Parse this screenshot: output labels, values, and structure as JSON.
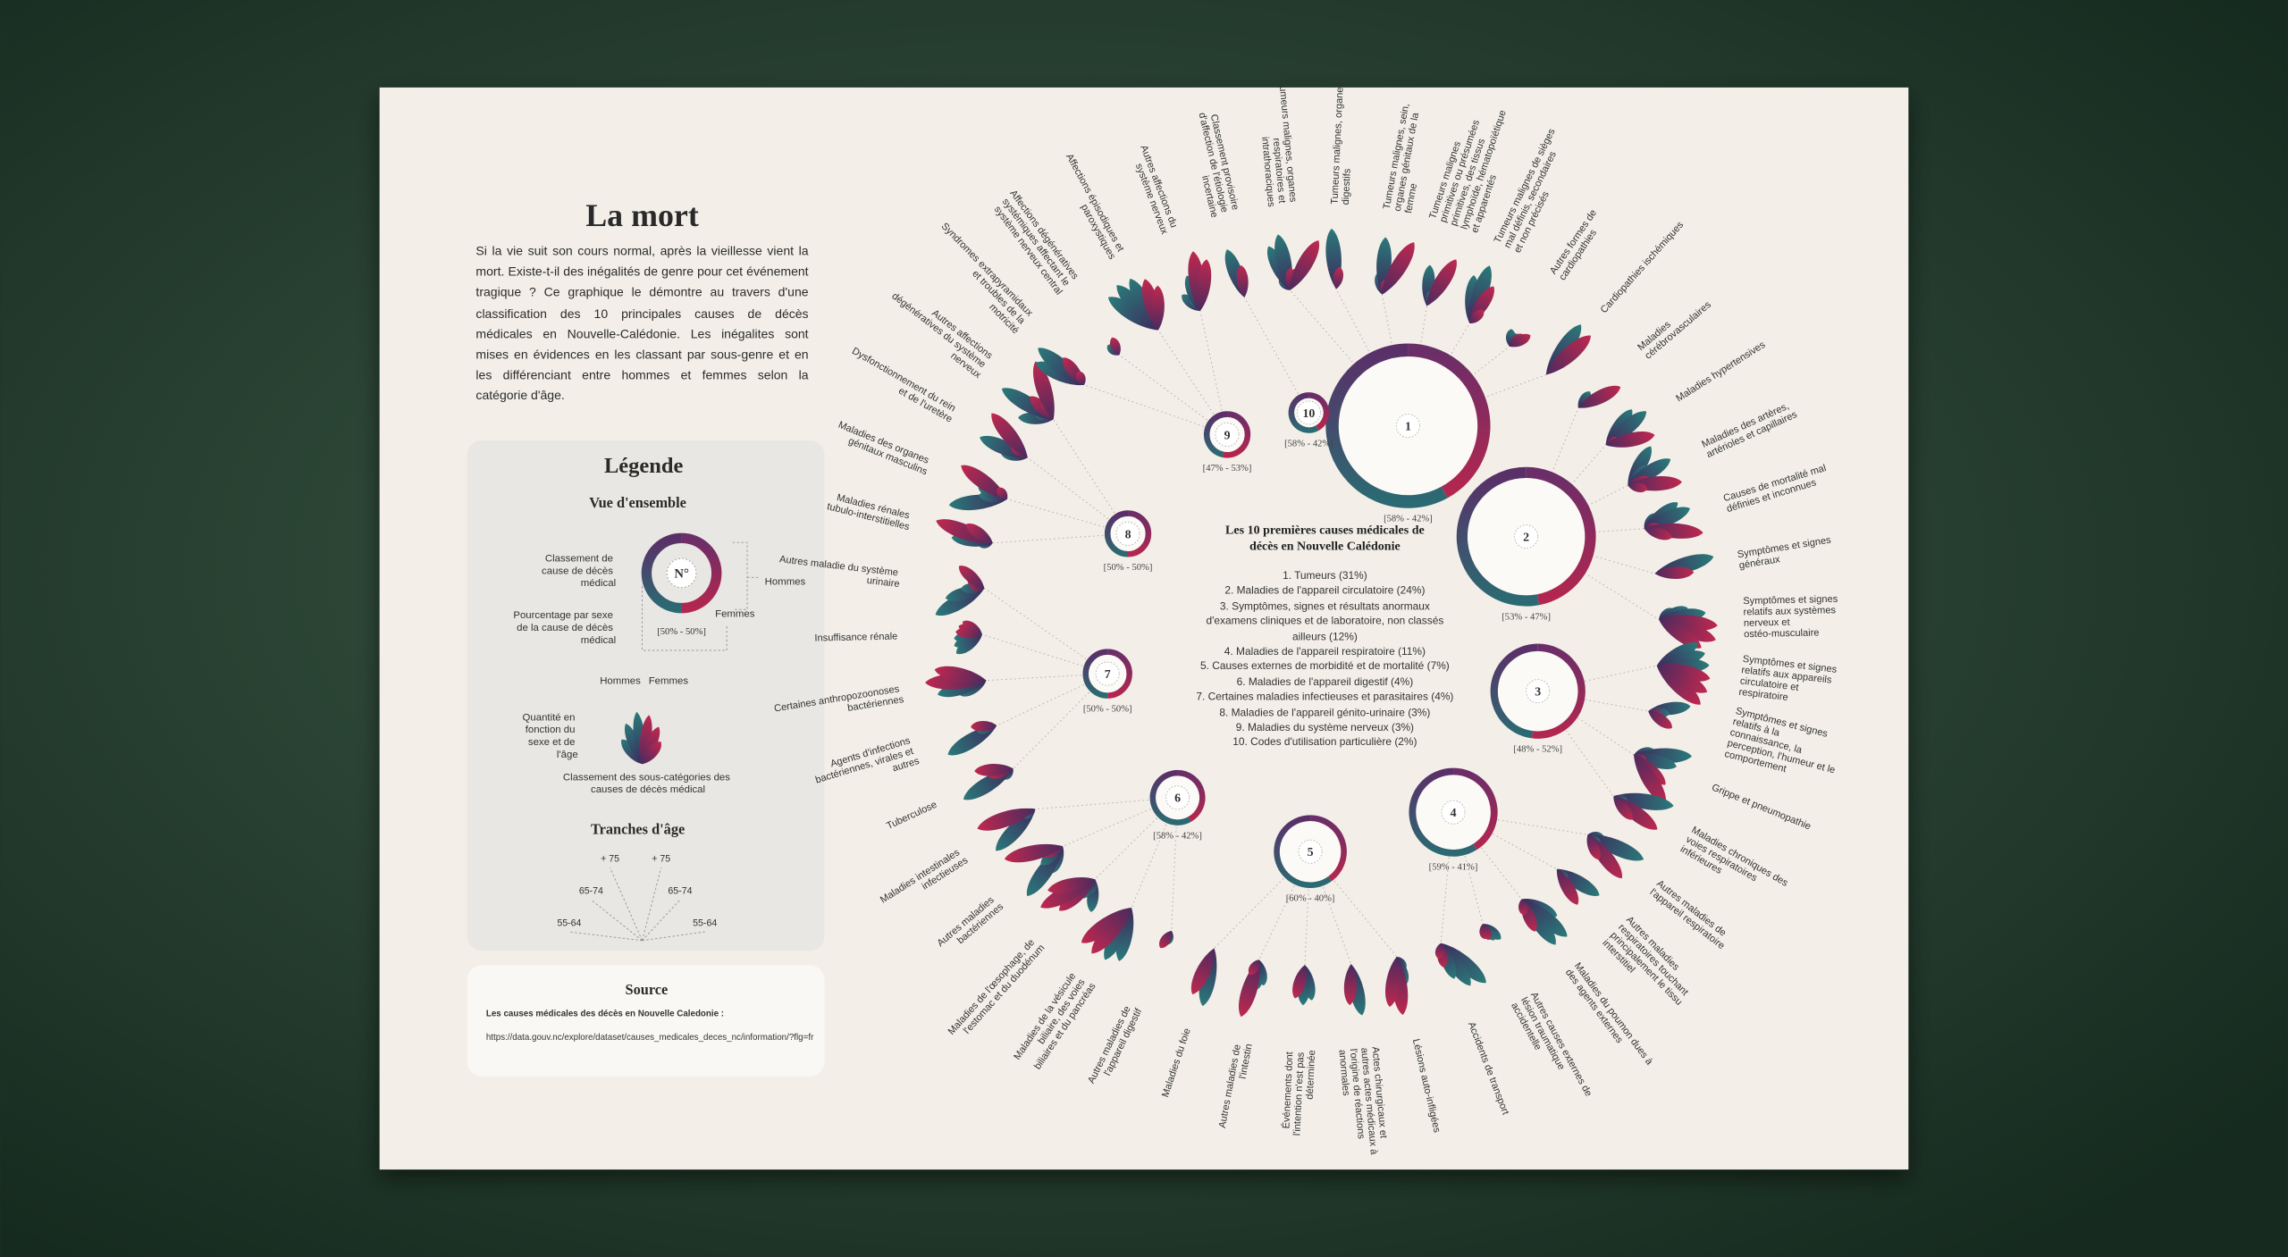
{
  "header": {
    "title": "La mort",
    "intro": "Si la vie suit son cours normal, après la vieillesse vient la mort. Existe-t-il des inégalités de genre pour cet événement tragique ? Ce graphique le démontre au travers d'une classification des 10 principales causes de décès médicales en Nouvelle-Calédonie. Les inégalites sont mises en évidences en les classant par sous-genre et en les différenciant entre hommes et femmes selon la catégorie d'âge."
  },
  "legend": {
    "title": "Légende",
    "overview": "Vue d'ensemble",
    "rank_note": "Classement de cause de décès médical",
    "rank_symbol": "N°",
    "men": "Hommes",
    "women": "Femmes",
    "share_note": "Pourcentage par sexe de la cause de décès médical",
    "share_example": "[50% - 50%]",
    "petal_men": "Hommes",
    "petal_women": "Femmes",
    "quantity_note": "Quantité en fonction du sexe et de l'âge",
    "subcat_note": "Classement des sous-catégories des causes de décès médical",
    "ages_title": "Tranches d'âge",
    "ages": [
      "+ 75",
      "+ 75",
      "65-74",
      "65-74",
      "55-64",
      "55-64"
    ]
  },
  "source": {
    "title": "Source",
    "label": "Les causes médicales des décès en Nouvelle Caledonie :",
    "url": "https://data.gouv.nc/explore/dataset/causes_medicales_deces_nc/information/?flg=fr"
  },
  "center": {
    "title": "Les 10 premières causes médicales de décès en Nouvelle Calédonie",
    "items": [
      "1. Tumeurs (31%)",
      "2. Maladies de l'appareil circulatoire (24%)",
      "3. Symptômes, signes et résultats anormaux d'examens cliniques et de laboratoire, non classés ailleurs (12%)",
      "4. Maladies de l'appareil respiratoire (11%)",
      "5. Causes externes de morbidité et de mortalité (7%)",
      "6. Maladies de l'appareil digestif (4%)",
      "7. Certaines maladies infectieuses et parasitaires (4%)",
      "8. Maladies de l'appareil génito-urinaire (3%)",
      "9. Maladies du système nerveux (3%)",
      "10. Codes d'utilisation particulière (2%)"
    ]
  },
  "rings": [
    {
      "rank": 1,
      "share": "[58% - 42%]",
      "men": 58,
      "women": 42
    },
    {
      "rank": 2,
      "share": "[53% - 47%]",
      "men": 53,
      "women": 47
    },
    {
      "rank": 3,
      "share": "[48% - 52%]",
      "men": 48,
      "women": 52
    },
    {
      "rank": 4,
      "share": "[59% - 41%]",
      "men": 59,
      "women": 41
    },
    {
      "rank": 5,
      "share": "[60% - 40%]",
      "men": 60,
      "women": 40
    },
    {
      "rank": 6,
      "share": "[58% - 42%]",
      "men": 58,
      "women": 42
    },
    {
      "rank": 7,
      "share": "[50% - 50%]",
      "men": 50,
      "women": 50
    },
    {
      "rank": 8,
      "share": "[50% - 50%]",
      "men": 50,
      "women": 50
    },
    {
      "rank": 9,
      "share": "[47% - 53%]",
      "men": 47,
      "women": 53
    },
    {
      "rank": 10,
      "share": "[58% - 42%]",
      "men": 58,
      "women": 42
    }
  ],
  "subcategories": [
    "Classement provisoire d'affection de l'étiologie incertaine",
    "Tumeurs malignes, organes respiratoires et intrathoraciques",
    "Tumeurs malignes, organes digestifs",
    "Tumeurs malignes, sein, organes génitaux de la femme",
    "Tumeurs malignes primitives ou présumées primitives, des tissus lymphoïde, hématopoïétique et apparentés",
    "Tumeurs malignes de sièges mal définis, secondaires et non précisés",
    "Autres formes de cardiopathies",
    "Cardiopathies ischémiques",
    "Maladies cérébrovasculaires",
    "Maladies hypertensives",
    "Maladies des artères, artérioles et capillaires",
    "Causes de mortalité mal définies et inconnues",
    "Symptômes et signes généraux",
    "Symptômes et signes relatifs aux systèmes nerveux et ostéo-musculaire",
    "Symptômes et signes relatifs aux appareils circulatoire et respiratoire",
    "Symptômes et signes relatifs à la connaissance, la perception, l'humeur et le comportement",
    "Grippe et pneumopathie",
    "Maladies chroniques des voies respiratoires inférieures",
    "Autres maladies de l'appareil respiratoire",
    "Autres maladies respiratoires touchant principalement le tissu interstitiel",
    "Maladies du poumon dues à des agents externes",
    "Autres causes externes de lésion traumatique accidentelle",
    "Accidents de transport",
    "Lésions auto-infligées",
    "Actes chirurgicaux et autres actes médicaux à l'origine de réactions anormales",
    "Événements dont l'intention n'est pas déterminée",
    "Autres maladies de l'intestin",
    "Maladies du foie",
    "Autres maladies de l'appareil digestif",
    "Maladies de la vésicule biliaire, des voies biliaires et du pancréas",
    "Maladies de l'œsophage, de l'estomac et du duodénum",
    "Autres maladies bactériennes",
    "Maladies intestinales infectieuses",
    "Tuberculose",
    "Agents d'infections bactériennes, virales et autres",
    "Certaines anthropozoonoses bactériennes",
    "Insuffisance rénale",
    "Autres maladie du système urinaire",
    "Maladies rénales tubulo-interstitielles",
    "Maladies des organes génitaux masculins",
    "Dysfonctionnement du rein et de l'uretère",
    "Autres affections dégénératives du système nerveux",
    "Syndromes extrapyramidaux et troubles de la motricité",
    "Affections dégénératives systémiques affectant le système nerveux central",
    "Affections épisodiques et paroxystiques",
    "Autres affections du système nerveux"
  ]
}
